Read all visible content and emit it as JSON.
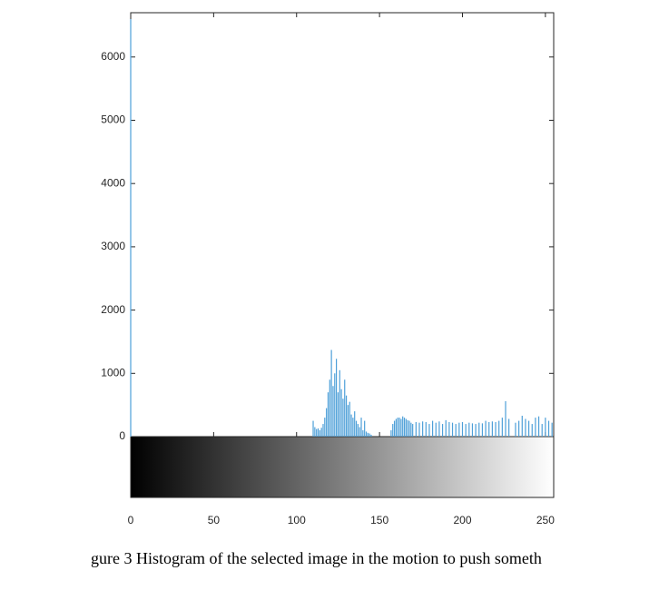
{
  "chart_data": {
    "type": "histogram",
    "caption": "gure 3 Histogram of the selected image in the motion to push someth",
    "color": "#4d9fd8",
    "x": [
      0,
      110,
      111,
      112,
      113,
      114,
      115,
      116,
      117,
      118,
      119,
      120,
      121,
      122,
      123,
      124,
      125,
      126,
      127,
      128,
      129,
      130,
      131,
      132,
      133,
      134,
      135,
      136,
      137,
      138,
      139,
      140,
      141,
      142,
      143,
      144,
      145,
      157,
      158,
      159,
      160,
      161,
      162,
      163,
      164,
      165,
      166,
      167,
      168,
      169,
      170,
      172,
      174,
      176,
      178,
      180,
      182,
      184,
      186,
      188,
      190,
      192,
      194,
      196,
      198,
      200,
      202,
      204,
      206,
      208,
      210,
      212,
      214,
      216,
      218,
      220,
      222,
      224,
      226,
      228,
      232,
      234,
      236,
      238,
      240,
      242,
      244,
      246,
      248,
      250,
      252,
      254
    ],
    "values": [
      6600,
      250,
      150,
      120,
      130,
      100,
      140,
      200,
      300,
      450,
      700,
      900,
      1370,
      800,
      1000,
      1230,
      700,
      1050,
      750,
      600,
      900,
      650,
      500,
      550,
      350,
      300,
      400,
      250,
      200,
      150,
      300,
      100,
      250,
      80,
      60,
      50,
      30,
      100,
      200,
      250,
      280,
      300,
      300,
      280,
      320,
      300,
      280,
      260,
      250,
      220,
      200,
      230,
      220,
      240,
      230,
      200,
      250,
      220,
      240,
      200,
      260,
      230,
      220,
      200,
      220,
      230,
      200,
      220,
      210,
      200,
      220,
      210,
      250,
      230,
      240,
      230,
      250,
      300,
      560,
      280,
      220,
      250,
      330,
      280,
      250,
      200,
      300,
      320,
      200,
      300,
      250,
      220
    ],
    "xlim": [
      0,
      255
    ],
    "ylim": [
      0,
      6700
    ],
    "xticks": [
      0,
      50,
      100,
      150,
      200,
      250
    ],
    "yticks": [
      0,
      1000,
      2000,
      3000,
      4000,
      5000,
      6000
    ]
  }
}
